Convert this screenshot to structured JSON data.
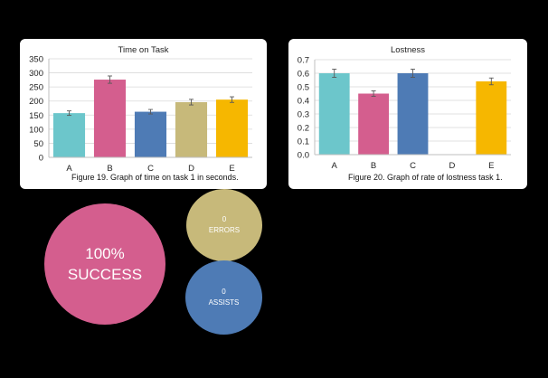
{
  "colors": {
    "background": "#000000",
    "teal": "#6CC6CB",
    "pink": "#D45E8E",
    "blue": "#4E7BB5",
    "khaki": "#C7B97A",
    "amber": "#F6B700"
  },
  "chart_data": [
    {
      "type": "bar",
      "title": "Time on Task",
      "caption": "Figure 19. Graph of time on task 1 in seconds.",
      "categories": [
        "A",
        "B",
        "C",
        "D",
        "E"
      ],
      "values": [
        157,
        276,
        162,
        196,
        205
      ],
      "error": [
        8,
        13,
        8,
        10,
        10
      ],
      "bar_colors": [
        "#6CC6CB",
        "#D45E8E",
        "#4E7BB5",
        "#C7B97A",
        "#F6B700"
      ],
      "xlabel": "",
      "ylabel": "",
      "ylim": [
        0,
        350
      ],
      "yticks": [
        0,
        50,
        100,
        150,
        200,
        250,
        300,
        350
      ],
      "grid": true,
      "legend": "none"
    },
    {
      "type": "bar",
      "title": "Lostness",
      "caption": "Figure 20. Graph of rate of lostness task 1.",
      "categories": [
        "A",
        "B",
        "C",
        "D",
        "E"
      ],
      "values": [
        0.6,
        0.45,
        0.6,
        0,
        0.54
      ],
      "error": [
        0.03,
        0.02,
        0.03,
        0,
        0.025
      ],
      "bar_colors": [
        "#6CC6CB",
        "#D45E8E",
        "#4E7BB5",
        "#C7B97A",
        "#F6B700"
      ],
      "xlabel": "",
      "ylabel": "",
      "ylim": [
        0,
        0.7
      ],
      "yticks": [
        0,
        0.1,
        0.2,
        0.3,
        0.4,
        0.5,
        0.6,
        0.7
      ],
      "grid": true,
      "legend": "none"
    }
  ],
  "stats": {
    "success": {
      "value": "100%",
      "label": "SUCCESS"
    },
    "errors": {
      "value": "0",
      "label": "ERRORS"
    },
    "assists": {
      "value": "0",
      "label": "ASSISTS"
    }
  }
}
